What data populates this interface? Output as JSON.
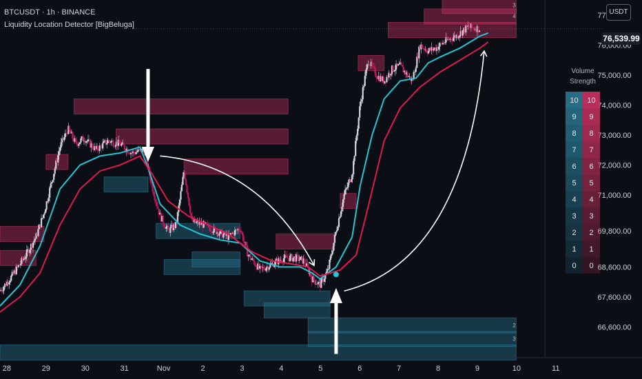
{
  "header": {
    "symbol_line": "BTCUSDT · 1h · BINANCE",
    "indicator_line": "Liquidity Location Detector [BigBeluga]"
  },
  "currency_button": "USDT",
  "last_price": "76,539.99",
  "legend": {
    "title": "Volume Strength",
    "bull_levels": [
      "10",
      "9",
      "8",
      "7",
      "6",
      "5",
      "4",
      "3",
      "2",
      "1",
      "0"
    ],
    "bear_levels": [
      "10",
      "9",
      "8",
      "7",
      "6",
      "5",
      "4",
      "3",
      "2",
      "1",
      "0"
    ]
  },
  "colors": {
    "background": "#0b0e15",
    "bear_zone": "#d63466",
    "bull_zone": "#2b7e99",
    "fast_ma": "#22c7d6",
    "slow_ma": "#e0194f",
    "candle_up": "#d1d4dc",
    "candle_down": "#c2185b",
    "arrow": "#ffffff"
  },
  "chart_data": {
    "type": "candlestick",
    "title": "BTCUSDT · 1h · BINANCE",
    "x_ticks": [
      "28",
      "29",
      "30",
      "31",
      "Nov",
      "2",
      "3",
      "4",
      "5",
      "6",
      "7",
      "8",
      "9",
      "10",
      "11"
    ],
    "y_ticks": [
      77000,
      76000,
      75000,
      74000,
      73000,
      72000,
      71000,
      69800,
      68600,
      67600,
      66600
    ],
    "y_tick_labels": [
      "77,000.00",
      "76,000.00",
      "75,000.00",
      "74,000.00",
      "73,000.00",
      "72,000.00",
      "71,000.00",
      "69,800.00",
      "68,600.00",
      "67,600.00",
      "66,600.00"
    ],
    "ylim": [
      65600,
      77500
    ],
    "xlim": [
      0,
      13.6
    ],
    "grid": false,
    "last_close": 76539.99,
    "price_path": [
      [
        0.0,
        67800
      ],
      [
        0.3,
        68300
      ],
      [
        0.6,
        68900
      ],
      [
        0.9,
        69600
      ],
      [
        1.1,
        70400
      ],
      [
        1.3,
        71500
      ],
      [
        1.5,
        72600
      ],
      [
        1.7,
        73200
      ],
      [
        1.9,
        72700
      ],
      [
        2.1,
        72900
      ],
      [
        2.4,
        72500
      ],
      [
        2.7,
        72800
      ],
      [
        3.0,
        72700
      ],
      [
        3.3,
        72400
      ],
      [
        3.6,
        72500
      ],
      [
        3.8,
        71300
      ],
      [
        4.0,
        70300
      ],
      [
        4.2,
        69800
      ],
      [
        4.4,
        70000
      ],
      [
        4.6,
        71800
      ],
      [
        4.8,
        70100
      ],
      [
        5.1,
        70000
      ],
      [
        5.4,
        69800
      ],
      [
        5.7,
        69600
      ],
      [
        6.0,
        69900
      ],
      [
        6.2,
        69000
      ],
      [
        6.5,
        68500
      ],
      [
        6.8,
        68700
      ],
      [
        7.1,
        68900
      ],
      [
        7.4,
        68900
      ],
      [
        7.6,
        68800
      ],
      [
        7.8,
        68200
      ],
      [
        8.0,
        68000
      ],
      [
        8.2,
        68500
      ],
      [
        8.4,
        69800
      ],
      [
        8.6,
        71000
      ],
      [
        8.8,
        71700
      ],
      [
        9.0,
        74000
      ],
      [
        9.2,
        75500
      ],
      [
        9.4,
        75000
      ],
      [
        9.6,
        74800
      ],
      [
        9.8,
        75200
      ],
      [
        10.0,
        75300
      ],
      [
        10.3,
        74800
      ],
      [
        10.5,
        76000
      ],
      [
        10.7,
        75800
      ],
      [
        10.9,
        75900
      ],
      [
        11.1,
        76100
      ],
      [
        11.4,
        76300
      ],
      [
        11.7,
        76600
      ],
      [
        12.0,
        76540
      ]
    ],
    "series": [
      {
        "name": "",
        "kind": "fast_ma",
        "points": [
          [
            0.0,
            67300
          ],
          [
            0.5,
            68000
          ],
          [
            1.0,
            69300
          ],
          [
            1.5,
            71200
          ],
          [
            2.0,
            72000
          ],
          [
            2.5,
            72300
          ],
          [
            3.0,
            72400
          ],
          [
            3.5,
            72600
          ],
          [
            3.7,
            71900
          ],
          [
            4.0,
            70700
          ],
          [
            4.5,
            70000
          ],
          [
            5.0,
            69700
          ],
          [
            5.5,
            69500
          ],
          [
            6.0,
            69400
          ],
          [
            6.5,
            68800
          ],
          [
            7.0,
            68600
          ],
          [
            7.5,
            68600
          ],
          [
            7.8,
            68400
          ],
          [
            8.0,
            68200
          ],
          [
            8.4,
            68600
          ],
          [
            8.8,
            69600
          ],
          [
            9.0,
            71300
          ],
          [
            9.3,
            73000
          ],
          [
            9.6,
            74200
          ],
          [
            10.0,
            74800
          ],
          [
            10.4,
            74900
          ],
          [
            10.7,
            75400
          ],
          [
            11.0,
            75600
          ],
          [
            11.5,
            75900
          ],
          [
            12.0,
            76300
          ],
          [
            12.2,
            76400
          ]
        ]
      },
      {
        "name": "",
        "kind": "slow_ma",
        "points": [
          [
            0.0,
            67100
          ],
          [
            0.5,
            67600
          ],
          [
            1.0,
            68400
          ],
          [
            1.5,
            70000
          ],
          [
            2.0,
            71200
          ],
          [
            2.5,
            71800
          ],
          [
            3.0,
            72000
          ],
          [
            3.5,
            72300
          ],
          [
            3.8,
            71700
          ],
          [
            4.2,
            70800
          ],
          [
            4.7,
            70300
          ],
          [
            5.2,
            70000
          ],
          [
            5.7,
            69700
          ],
          [
            6.3,
            69100
          ],
          [
            6.8,
            68800
          ],
          [
            7.3,
            68700
          ],
          [
            7.7,
            68600
          ],
          [
            8.0,
            68300
          ],
          [
            8.5,
            68500
          ],
          [
            8.9,
            69000
          ],
          [
            9.2,
            70600
          ],
          [
            9.6,
            72800
          ],
          [
            10.0,
            73900
          ],
          [
            10.5,
            74600
          ],
          [
            11.0,
            75100
          ],
          [
            11.5,
            75500
          ],
          [
            12.0,
            75900
          ],
          [
            12.2,
            76100
          ]
        ]
      }
    ],
    "bear_zones": [
      {
        "x0": 1.85,
        "x1": 7.2,
        "price": 73950
      },
      {
        "x0": 2.9,
        "x1": 7.2,
        "price": 72950
      },
      {
        "x0": 4.6,
        "x1": 7.2,
        "price": 71950
      },
      {
        "x0": 1.15,
        "x1": 1.7,
        "price": 72100
      },
      {
        "x0": 0.0,
        "x1": 1.1,
        "price": 69700
      },
      {
        "x0": 0.0,
        "x1": 0.9,
        "price": 68900
      },
      {
        "x0": 6.9,
        "x1": 8.35,
        "price": 69450
      },
      {
        "x0": 8.5,
        "x1": 8.9,
        "price": 70800
      },
      {
        "x0": 8.95,
        "x1": 9.6,
        "price": 75400
      },
      {
        "x0": 9.7,
        "x1": 12.9,
        "price": 76500
      },
      {
        "x0": 10.6,
        "x1": 12.9,
        "price": 76950
      },
      {
        "x0": 11.05,
        "x1": 12.9,
        "price": 77300
      }
    ],
    "bull_zones": [
      {
        "x0": 2.6,
        "x1": 3.7,
        "price": 71350
      },
      {
        "x0": 3.9,
        "x1": 6.0,
        "price": 69800
      },
      {
        "x0": 4.1,
        "x1": 6.0,
        "price": 68600
      },
      {
        "x0": 4.8,
        "x1": 6.0,
        "price": 68850
      },
      {
        "x0": 6.1,
        "x1": 8.25,
        "price": 67550
      },
      {
        "x0": 6.6,
        "x1": 8.25,
        "price": 67150
      },
      {
        "x0": 7.7,
        "x1": 12.9,
        "price": 66650
      },
      {
        "x0": 7.7,
        "x1": 12.9,
        "price": 66200
      },
      {
        "x0": 0.0,
        "x1": 12.9,
        "price": 65750
      }
    ],
    "zone_labels": [
      {
        "text": "3",
        "x": 12.85,
        "price": 77330
      },
      {
        "text": "4",
        "x": 12.85,
        "price": 76960
      },
      {
        "text": "2",
        "x": 12.85,
        "price": 66660
      },
      {
        "text": "3",
        "x": 12.85,
        "price": 66210
      }
    ],
    "markers": [
      {
        "kind": "arrow-down",
        "x": 3.7,
        "price": 75200,
        "tip_price": 72100
      },
      {
        "kind": "arrow-up",
        "x": 8.4,
        "price": 65700,
        "tip_price": 67900
      },
      {
        "kind": "dot",
        "x": 8.4,
        "price": 68350
      }
    ],
    "curves": [
      {
        "from": [
          4.0,
          72300
        ],
        "ctrl": [
          6.5,
          72000
        ],
        "to": [
          7.85,
          68650
        ]
      },
      {
        "from": [
          8.6,
          67800
        ],
        "ctrl": [
          11.6,
          68800
        ],
        "to": [
          12.1,
          75800
        ]
      }
    ]
  }
}
